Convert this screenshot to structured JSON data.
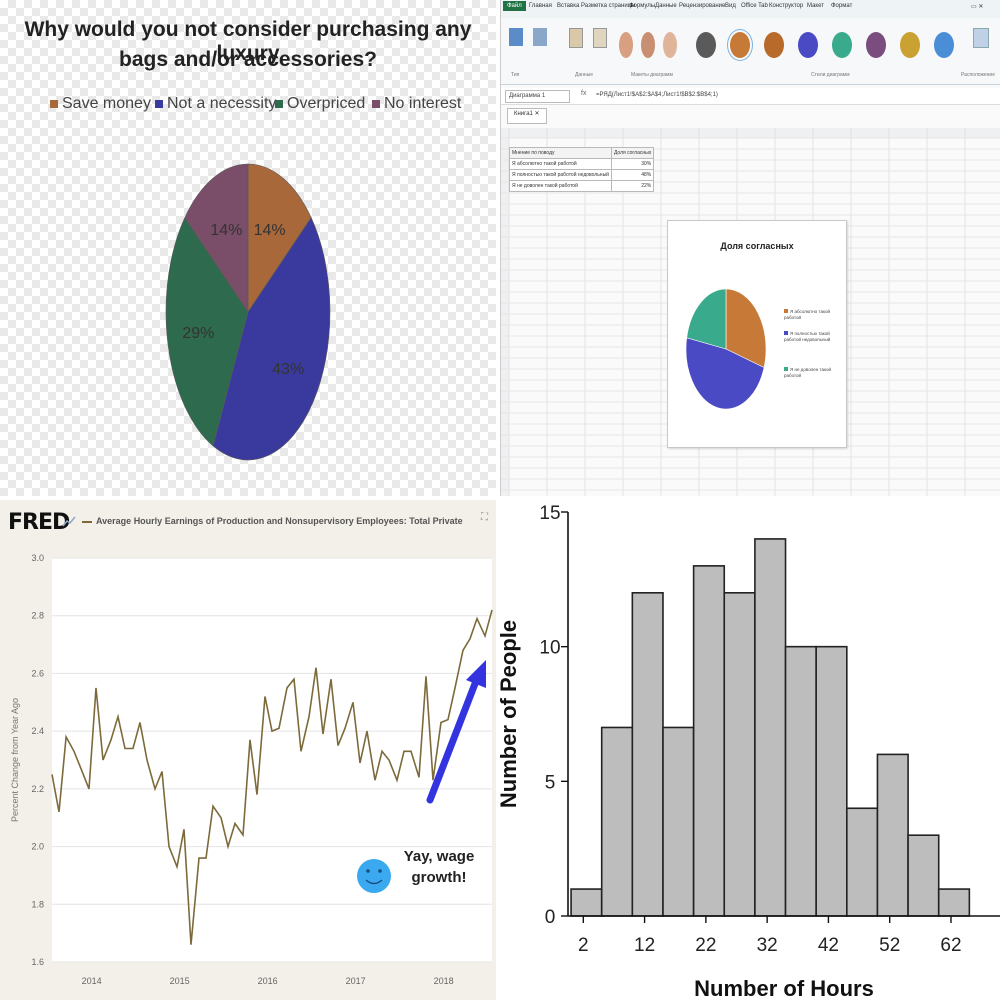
{
  "chart_data": [
    {
      "type": "pie",
      "title": "Why would you not consider purchasing any luxury bags and/or accessories?",
      "title_lines": [
        "Why would you not consider purchasing any luxury",
        "bags and/or accessories?"
      ],
      "legend_placement": "top",
      "slices": [
        {
          "name": "Save money",
          "value": 14,
          "label": "14%",
          "color": "#a8683a"
        },
        {
          "name": "Not a necessity",
          "value": 43,
          "label": "43%",
          "color": "#3a3a9e"
        },
        {
          "name": "Overpriced",
          "value": 29,
          "label": "29%",
          "color": "#2e6a4d"
        },
        {
          "name": "No interest",
          "value": 14,
          "label": "14%",
          "color": "#7a4d68"
        }
      ]
    },
    {
      "type": "pie",
      "title": "Доля согласных",
      "legend_placement": "right",
      "slices": [
        {
          "name": "Я абсолютно такой работой",
          "value": 30,
          "color": "#c77a37"
        },
        {
          "name": "Я полностью такой работой недовольный",
          "value": 48,
          "color": "#4a4bc4"
        },
        {
          "name": "Я не доволен такой работой",
          "value": 22,
          "color": "#3aaa8c"
        }
      ]
    },
    {
      "type": "line",
      "title": "Average Hourly Earnings of Production and Nonsupervisory Employees: Total Private",
      "ylabel": "Percent Change from Year Ago",
      "ylim": [
        1.6,
        3.0
      ],
      "xlim": [
        2013.6,
        2018.6
      ],
      "yticks": [
        "3.0",
        "2.8",
        "2.6",
        "2.4",
        "2.2",
        "2.0",
        "1.8",
        "1.6"
      ],
      "xticks": [
        "2014",
        "2015",
        "2016",
        "2017",
        "2018"
      ],
      "grid": true,
      "color": "#7d6a3a",
      "annotation": {
        "text_line1": "Yay, wage",
        "text_line2": "growth!"
      },
      "series": [
        {
          "x": [
            2013.6,
            2013.68,
            2013.76,
            2013.85,
            2013.93,
            2014.02,
            2014.1,
            2014.18,
            2014.27,
            2014.35,
            2014.43,
            2014.52,
            2014.6,
            2014.68,
            2014.77,
            2014.85,
            2014.93,
            2015.02,
            2015.1,
            2015.18,
            2015.27,
            2015.35,
            2015.43,
            2015.52,
            2015.6,
            2015.68,
            2015.77,
            2015.85,
            2015.93,
            2016.02,
            2016.1,
            2016.18,
            2016.27,
            2016.35,
            2016.43,
            2016.52,
            2016.6,
            2016.68,
            2016.77,
            2016.85,
            2016.93,
            2017.02,
            2017.1,
            2017.18,
            2017.27,
            2017.35,
            2017.43,
            2017.52,
            2017.6,
            2017.68,
            2017.77,
            2017.85,
            2017.93,
            2018.02,
            2018.1,
            2018.18,
            2018.27,
            2018.35,
            2018.43,
            2018.52,
            2018.6
          ],
          "y": [
            2.25,
            2.12,
            2.38,
            2.33,
            2.27,
            2.2,
            2.55,
            2.3,
            2.37,
            2.45,
            2.34,
            2.34,
            2.43,
            2.3,
            2.2,
            2.26,
            2.0,
            1.93,
            2.06,
            1.66,
            1.96,
            1.96,
            2.14,
            2.1,
            2.0,
            2.08,
            2.04,
            2.37,
            2.18,
            2.52,
            2.4,
            2.41,
            2.55,
            2.58,
            2.33,
            2.45,
            2.62,
            2.39,
            2.58,
            2.35,
            2.41,
            2.5,
            2.29,
            2.4,
            2.23,
            2.33,
            2.3,
            2.23,
            2.33,
            2.33,
            2.24,
            2.59,
            2.23,
            2.43,
            2.44,
            2.55,
            2.68,
            2.72,
            2.79,
            2.73,
            2.82
          ]
        }
      ]
    },
    {
      "type": "bar",
      "title": "",
      "xlabel": "Number of Hours",
      "ylabel": "Number of People",
      "ylim": [
        0,
        15
      ],
      "yticks": [
        "0",
        "5",
        "10",
        "15"
      ],
      "xticks": [
        "2",
        "12",
        "22",
        "32",
        "42",
        "52",
        "62"
      ],
      "bin_width": 5,
      "bins_start": [
        0,
        5,
        10,
        15,
        20,
        25,
        30,
        35,
        40,
        45,
        50,
        55,
        60
      ],
      "values": [
        1,
        7,
        12,
        7,
        13,
        12,
        14,
        10,
        10,
        4,
        6,
        3,
        1
      ],
      "bar_color": "#bdbdbd",
      "grid": false
    }
  ],
  "excel": {
    "ribbon_tabs": [
      "Файл",
      "Главная",
      "Вставка",
      "Разметка страницы",
      "Формулы",
      "Данные",
      "Рецензирование",
      "Вид",
      "Office Tab",
      "Конструктор",
      "Макет",
      "Формат"
    ],
    "name_box": "Диаграмма 1",
    "formula": "=РЯД(Лист1!$A$2:$A$4;Лист1!$B$2:$B$4;1)",
    "sheet_tab": "Книга1",
    "table_header": [
      "Мнение по поводу",
      "Доля согласных"
    ],
    "table_rows": [
      {
        "label": "Я абсолютно такой работой",
        "value": "30%"
      },
      {
        "label": "Я полностью такой работой недовольный",
        "value": "48%"
      },
      {
        "label": "Я не доволен такой работой",
        "value": "22%"
      }
    ],
    "ribbon_group_labels": [
      "Тип",
      "Данные",
      "Макеты диаграмм",
      "Стили диаграмм",
      "Расположение"
    ],
    "ball_colors": [
      "#5a5a5a",
      "#c77a37",
      "#c77a37",
      "#4a4bc4",
      "#3aaa8c",
      "#7a4d7e",
      "#c9a233",
      "#4a8ed8"
    ]
  }
}
